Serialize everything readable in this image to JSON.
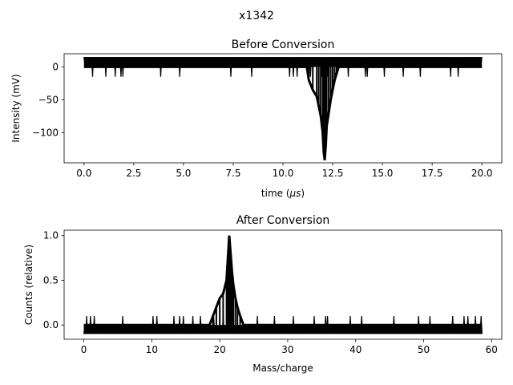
{
  "figure": {
    "suptitle": "x1342"
  },
  "chart_data": [
    {
      "type": "line",
      "title": "Before Conversion",
      "xlabel_prefix": "time (",
      "xlabel_unit": "μs",
      "xlabel_suffix": ")",
      "ylabel": "Intensity (mV)",
      "xlim": [
        -1.0,
        21.0
      ],
      "ylim": [
        -146,
        20
      ],
      "xticks": [
        0.0,
        2.5,
        5.0,
        7.5,
        10.0,
        12.5,
        15.0,
        17.5,
        20.0
      ],
      "xtick_labels": [
        "0.0",
        "2.5",
        "5.0",
        "7.5",
        "10.0",
        "12.5",
        "15.0",
        "17.5",
        "20.0"
      ],
      "yticks": [
        0,
        -50,
        -100
      ],
      "ytick_labels": [
        "0",
        "−50",
        "−100"
      ],
      "grid": false,
      "series": [
        {
          "color": "#000000",
          "noise_band": {
            "x_start": 0.0,
            "x_end": 20.0,
            "high": 15,
            "low": 0,
            "spike_low": -15
          },
          "x": [
            0.0,
            11.2,
            11.3,
            11.5,
            11.7,
            11.8,
            11.9,
            12.0,
            12.05,
            12.1,
            12.15,
            12.2,
            12.3,
            12.4,
            12.5,
            12.6,
            12.7,
            12.8,
            20.0
          ],
          "y": [
            0,
            0,
            -20,
            -35,
            -45,
            -60,
            -75,
            -100,
            -130,
            -142,
            -120,
            -90,
            -70,
            -50,
            -35,
            -20,
            -10,
            0,
            0
          ]
        }
      ]
    },
    {
      "type": "line",
      "title": "After Conversion",
      "xlabel": "Mass/charge",
      "ylabel": "Counts (relative)",
      "xlim": [
        -2.9,
        61.5
      ],
      "ylim": [
        -0.16,
        1.06
      ],
      "xticks": [
        0,
        10,
        20,
        30,
        40,
        50,
        60
      ],
      "xtick_labels": [
        "0",
        "10",
        "20",
        "30",
        "40",
        "50",
        "60"
      ],
      "yticks": [
        0.0,
        0.5,
        1.0
      ],
      "ytick_labels": [
        "0.0",
        "0.5",
        "1.0"
      ],
      "grid": false,
      "series": [
        {
          "color": "#000000",
          "noise_band": {
            "x_start": 0.0,
            "x_end": 58.6,
            "high": 0.0,
            "low": -0.1,
            "spike_high": 0.1
          },
          "x": [
            0.0,
            18.5,
            19.0,
            19.5,
            20.0,
            20.5,
            21.0,
            21.2,
            21.4,
            21.6,
            21.8,
            22.0,
            22.3,
            22.6,
            23.0,
            23.5,
            58.6
          ],
          "y": [
            0.0,
            0.0,
            0.1,
            0.2,
            0.3,
            0.35,
            0.5,
            0.75,
            1.0,
            0.8,
            0.6,
            0.45,
            0.3,
            0.2,
            0.1,
            0.0,
            0.0
          ]
        }
      ]
    }
  ]
}
